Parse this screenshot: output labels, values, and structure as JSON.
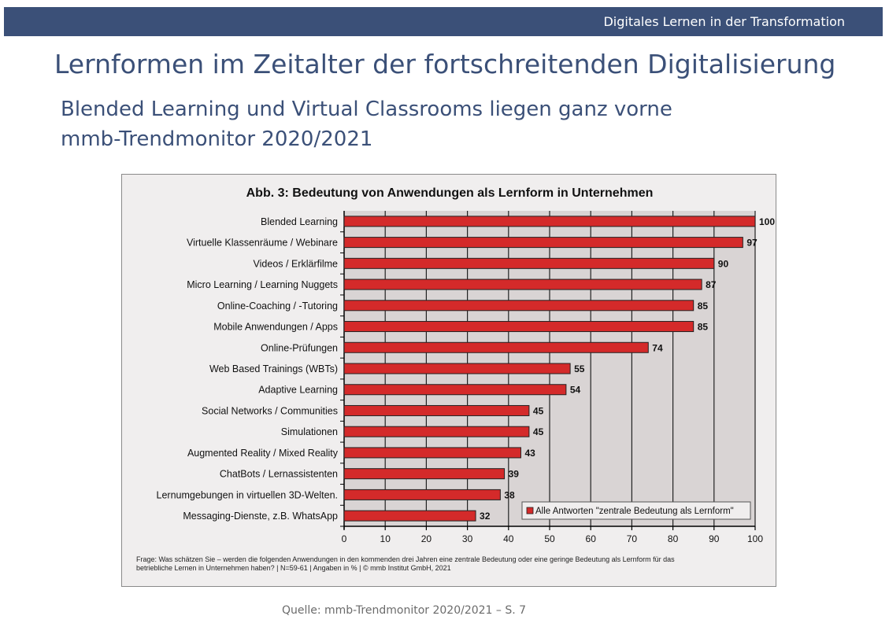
{
  "header": {
    "title": "Digitales Lernen in der Transformation"
  },
  "page": {
    "title": "Lernformen im Zeitalter der fortschreitenden Digitalisierung",
    "subtitle_line1": "Blended Learning und Virtual Classrooms liegen ganz vorne",
    "subtitle_line2": "mmb-Trendmonitor 2020/2021"
  },
  "chart_data": {
    "type": "bar",
    "orientation": "horizontal",
    "title": "Abb. 3: Bedeutung von Anwendungen als Lernform in Unternehmen",
    "categories": [
      "Blended Learning",
      "Virtuelle Klassenräume / Webinare",
      "Videos / Erklärfilme",
      "Micro Learning / Learning Nuggets",
      "Online-Coaching / -Tutoring",
      "Mobile Anwendungen / Apps",
      "Online-Prüfungen",
      "Web Based Trainings (WBTs)",
      "Adaptive Learning",
      "Social Networks / Communities",
      "Simulationen",
      "Augmented Reality / Mixed Reality",
      "ChatBots / Lernassistenten",
      "Lernumgebungen in virtuellen 3D-Welten.",
      "Messaging-Dienste, z.B. WhatsApp"
    ],
    "series": [
      {
        "name": "Alle Antworten \"zentrale Bedeutung als Lernform\"",
        "values": [
          100,
          97,
          90,
          87,
          85,
          85,
          74,
          55,
          54,
          45,
          45,
          43,
          39,
          38,
          32
        ]
      }
    ],
    "xlim": [
      0,
      100
    ],
    "xticks": [
      0,
      10,
      20,
      30,
      40,
      50,
      60,
      70,
      80,
      90,
      100
    ],
    "grid": true,
    "legend": "bottom-right",
    "bar_color": "#d42a2a",
    "footnote_line1": "Frage: Was schätzen Sie – werden die folgenden Anwendungen in den kommenden drei Jahren eine zentrale Bedeutung oder eine geringe Bedeutung als Lernform für das",
    "footnote_line2": "betriebliche Lernen in Unternehmen haben?  | N=59-61 | Angaben in % | © mmb Institut GmbH, 2021"
  },
  "source": "Quelle: mmb-Trendmonitor 2020/2021 – S. 7"
}
